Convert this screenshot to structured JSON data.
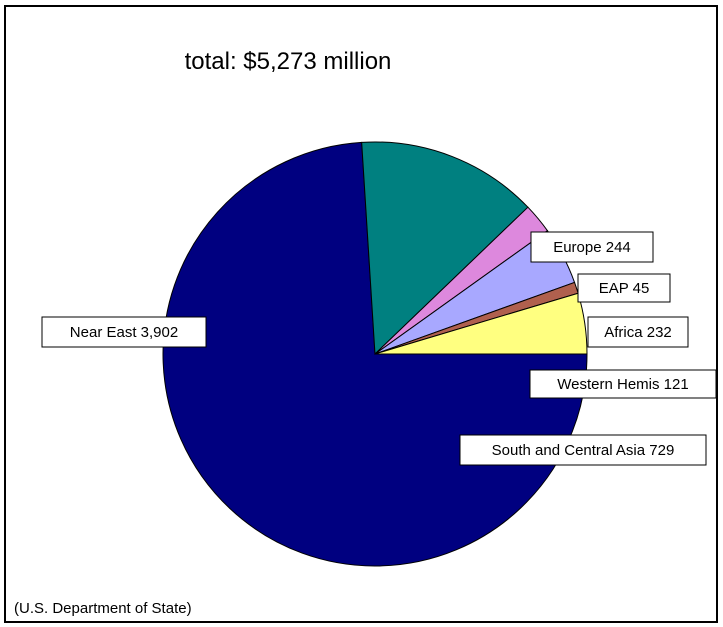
{
  "chart_data": {
    "type": "pie",
    "title": "total:  $5,273 million",
    "unit": "",
    "slices": [
      {
        "label": "Near East",
        "value": 3902,
        "color": "#000080",
        "display": "Near East 3,902"
      },
      {
        "label": "South and Central Asia",
        "value": 729,
        "color": "#008080",
        "display": "South and Central Asia 729"
      },
      {
        "label": "Western Hemis",
        "value": 121,
        "color": "#DD88DD",
        "display": "Western Hemis 121"
      },
      {
        "label": "Africa",
        "value": 232,
        "color": "#A8A8FF",
        "display": "Africa 232"
      },
      {
        "label": "EAP",
        "value": 45,
        "color": "#B0604E",
        "display": "EAP 45"
      },
      {
        "label": "Europe",
        "value": 244,
        "color": "#FFFF80",
        "display": "Europe 244"
      }
    ],
    "legend": "none",
    "source_note": "(U.S. Department of State)"
  }
}
